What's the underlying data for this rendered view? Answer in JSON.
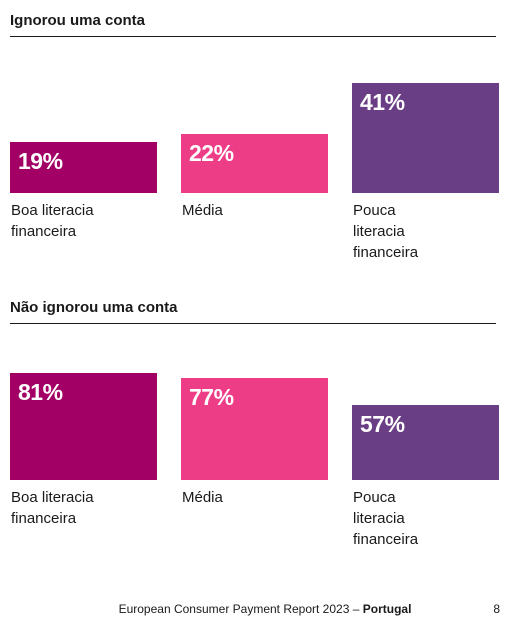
{
  "colors": {
    "high": "#a30065",
    "medium": "#ee3d87",
    "low": "#6a3e85"
  },
  "chart_data": [
    {
      "type": "bar",
      "title": "Ignorou uma conta",
      "categories": [
        "Boa literacia financeira",
        "Média",
        "Pouca literacia financeira"
      ],
      "values": [
        19,
        22,
        41
      ],
      "value_labels": [
        "19%",
        "22%",
        "41%"
      ],
      "category_lines": [
        [
          "Boa literacia",
          "financeira"
        ],
        [
          "Média"
        ],
        [
          "Pouca",
          "literacia",
          "financeira"
        ]
      ]
    },
    {
      "type": "bar",
      "title": "Não ignorou uma conta",
      "categories": [
        "Boa literacia financeira",
        "Média",
        "Pouca literacia financeira"
      ],
      "values": [
        81,
        77,
        57
      ],
      "value_labels": [
        "81%",
        "77%",
        "57%"
      ],
      "category_lines": [
        [
          "Boa literacia",
          "financeira"
        ],
        [
          "Média"
        ],
        [
          "Pouca",
          "literacia",
          "financeira"
        ]
      ]
    }
  ],
  "footer": {
    "report": "European Consumer Payment Report 2023 – ",
    "country": "Portugal",
    "page": "8"
  }
}
